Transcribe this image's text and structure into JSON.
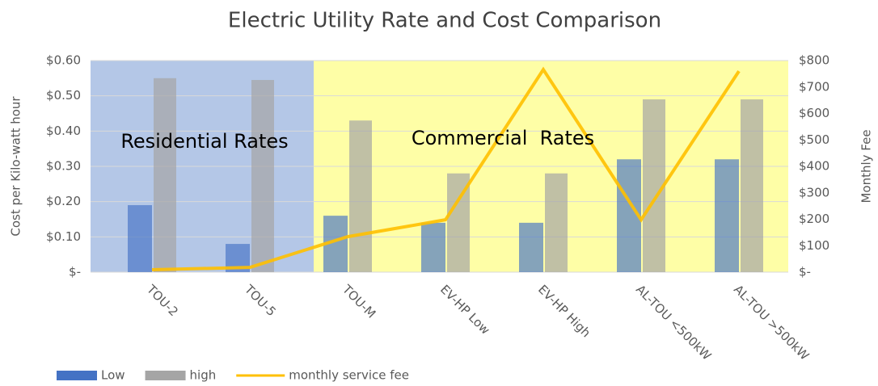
{
  "chart_data": {
    "type": "bar",
    "title": "Electric Utility Rate and Cost Comparison",
    "ylabel": "Cost per Kilo-watt hour",
    "y2label": "Monthly Fee",
    "annotations": [
      "Residential Rates",
      "Commercial  Rates"
    ],
    "categories": [
      "TOU-2",
      "TOU-5",
      "TOU-M",
      "EV-HP Low",
      "EV-HP High",
      "AL-TOU <500kW",
      "AL-TOU >500kW"
    ],
    "series": [
      {
        "name": "Low",
        "type": "bar",
        "color": "#4472c4",
        "values": [
          0.19,
          0.08,
          0.16,
          0.14,
          0.14,
          0.32,
          0.32
        ]
      },
      {
        "name": "high",
        "type": "bar",
        "color": "#a5a5a5",
        "values": [
          0.55,
          0.545,
          0.43,
          0.28,
          0.28,
          0.49,
          0.49
        ]
      },
      {
        "name": "monthly service fee",
        "type": "line",
        "axis": "y2",
        "color": "#ffc000",
        "values": [
          9,
          18,
          134,
          198,
          766,
          198,
          760
        ]
      }
    ],
    "ylim": [
      0,
      0.6
    ],
    "yticks": [
      {
        "value": 0,
        "label": "$-"
      },
      {
        "value": 0.1,
        "label": "$0.10"
      },
      {
        "value": 0.2,
        "label": "$0.20"
      },
      {
        "value": 0.3,
        "label": "$0.30"
      },
      {
        "value": 0.4,
        "label": "$0.40"
      },
      {
        "value": 0.5,
        "label": "$0.50"
      },
      {
        "value": 0.6,
        "label": "$0.60"
      }
    ],
    "y2lim": [
      0,
      800
    ],
    "y2ticks": [
      {
        "value": 0,
        "label": "$-"
      },
      {
        "value": 100,
        "label": "$100"
      },
      {
        "value": 200,
        "label": "$200"
      },
      {
        "value": 300,
        "label": "$300"
      },
      {
        "value": 400,
        "label": "$400"
      },
      {
        "value": 500,
        "label": "$500"
      },
      {
        "value": 600,
        "label": "$600"
      },
      {
        "value": 700,
        "label": "$700"
      },
      {
        "value": 800,
        "label": "$800"
      }
    ],
    "grid": true,
    "legend": "bottom-left"
  }
}
